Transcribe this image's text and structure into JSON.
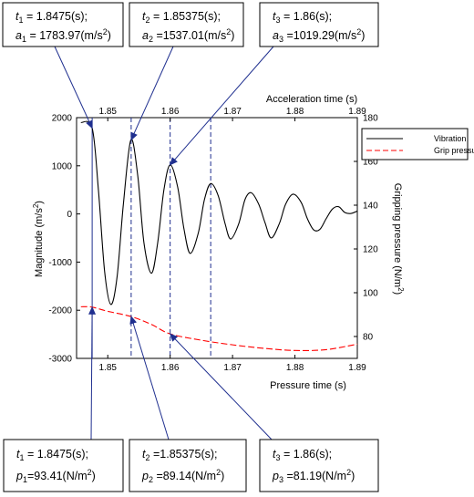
{
  "chart_data": {
    "type": "line",
    "title": "",
    "x_top": {
      "label": "Acceleration time (s)",
      "range": [
        1.845,
        1.89
      ],
      "ticks": [
        "1.85",
        "1.86",
        "1.87",
        "1.88",
        "1.89"
      ]
    },
    "x_bottom": {
      "label": "Pressure time (s)",
      "range": [
        1.845,
        1.89
      ],
      "ticks": [
        "1.85",
        "1.86",
        "1.87",
        "1.88",
        "1.89"
      ]
    },
    "y_left": {
      "label": "Magnitude (m/s²)",
      "range": [
        -3000,
        2000
      ],
      "ticks": [
        "2000",
        "1000",
        "0",
        "-1000",
        "-2000",
        "-3000"
      ]
    },
    "y_right": {
      "label": "Gripping pressure (N/m²)",
      "range": [
        70,
        180
      ],
      "ticks": [
        "180",
        "160",
        "140",
        "120",
        "100",
        "80"
      ]
    },
    "legend_position": "top-right",
    "series": [
      {
        "name": "Vibration",
        "axis": "left",
        "color": "#000000",
        "style": "solid",
        "points": [
          [
            1.8457,
            1900
          ],
          [
            1.8475,
            1783.97
          ],
          [
            1.8485,
            500
          ],
          [
            1.8495,
            -1200
          ],
          [
            1.8505,
            -1880
          ],
          [
            1.8515,
            -1300
          ],
          [
            1.8525,
            200
          ],
          [
            1.8537,
            1537.01
          ],
          [
            1.8548,
            800
          ],
          [
            1.8558,
            -600
          ],
          [
            1.857,
            -1230
          ],
          [
            1.858,
            -600
          ],
          [
            1.859,
            500
          ],
          [
            1.86,
            1019.29
          ],
          [
            1.8612,
            560
          ],
          [
            1.8622,
            -300
          ],
          [
            1.8632,
            -820
          ],
          [
            1.8645,
            -400
          ],
          [
            1.8655,
            300
          ],
          [
            1.8665,
            630
          ],
          [
            1.8677,
            380
          ],
          [
            1.8688,
            -200
          ],
          [
            1.8697,
            -520
          ],
          [
            1.871,
            -200
          ],
          [
            1.872,
            300
          ],
          [
            1.873,
            440
          ],
          [
            1.8742,
            200
          ],
          [
            1.8752,
            -180
          ],
          [
            1.8762,
            -500
          ],
          [
            1.8775,
            -200
          ],
          [
            1.8785,
            200
          ],
          [
            1.8797,
            410
          ],
          [
            1.881,
            240
          ],
          [
            1.882,
            -100
          ],
          [
            1.883,
            -330
          ],
          [
            1.884,
            -320
          ],
          [
            1.885,
            -100
          ],
          [
            1.886,
            100
          ],
          [
            1.887,
            150
          ],
          [
            1.888,
            30
          ],
          [
            1.889,
            10
          ],
          [
            1.89,
            60
          ]
        ]
      },
      {
        "name": "Grip pressure",
        "axis": "right",
        "color": "#ff0000",
        "style": "dashed",
        "points": [
          [
            1.8457,
            93.6
          ],
          [
            1.8475,
            93.41
          ],
          [
            1.85,
            91.5
          ],
          [
            1.8537,
            89.14
          ],
          [
            1.857,
            85.5
          ],
          [
            1.86,
            81.19
          ],
          [
            1.865,
            78.3
          ],
          [
            1.87,
            76.2
          ],
          [
            1.875,
            74.6
          ],
          [
            1.88,
            73.6
          ],
          [
            1.885,
            74.0
          ],
          [
            1.89,
            76.5
          ]
        ]
      }
    ],
    "markers": [
      {
        "t": 1.8475,
        "style": "solid"
      },
      {
        "t": 1.85375,
        "style": "dashed"
      },
      {
        "t": 1.86,
        "style": "dashed"
      },
      {
        "t": 1.8665,
        "style": "dashed"
      }
    ],
    "annotations_top": [
      {
        "t_sym": "t",
        "t_sub": "1",
        "t_val": " = 1.8475(s);",
        "a_sym": "a",
        "a_sub": "1",
        "a_val": " = 1783.97(m/s",
        "a_exp": "2",
        "a_end": ")",
        "target_t": 1.8475,
        "target_value": 1783.97
      },
      {
        "t_sym": "t",
        "t_sub": "2",
        "t_val": " = 1.85375(s);",
        "a_sym": "a",
        "a_sub": "2",
        "a_val": " =1537.01(m/s",
        "a_exp": "2",
        "a_end": ")",
        "target_t": 1.85375,
        "target_value": 1537.01
      },
      {
        "t_sym": "t",
        "t_sub": "3",
        "t_val": " = 1.86(s);",
        "a_sym": "a",
        "a_sub": "3",
        "a_val": " =1019.29(m/s",
        "a_exp": "2",
        "a_end": ")",
        "target_t": 1.86,
        "target_value": 1019.29
      }
    ],
    "annotations_bottom": [
      {
        "t_sym": "t",
        "t_sub": "1",
        "t_val": " = 1.8475(s);",
        "p_sym": "p",
        "p_sub": "1",
        "p_val": "=93.41(N/m",
        "p_exp": "2",
        "p_end": ")",
        "target_t": 1.8475,
        "target_value": 93.41
      },
      {
        "t_sym": "t",
        "t_sub": "2",
        "t_val": " =1.85375(s);",
        "p_sym": "p",
        "p_sub": "2",
        "p_val": " =89.14(N/m",
        "p_exp": "2",
        "p_end": ")",
        "target_t": 1.85375,
        "target_value": 89.14
      },
      {
        "t_sym": "t",
        "t_sub": "3",
        "t_val": " = 1.86(s);",
        "p_sym": "p",
        "p_sub": "3",
        "p_val": " =81.19(N/m",
        "p_exp": "2",
        "p_end": ")",
        "target_t": 1.86,
        "target_value": 81.19
      }
    ]
  }
}
